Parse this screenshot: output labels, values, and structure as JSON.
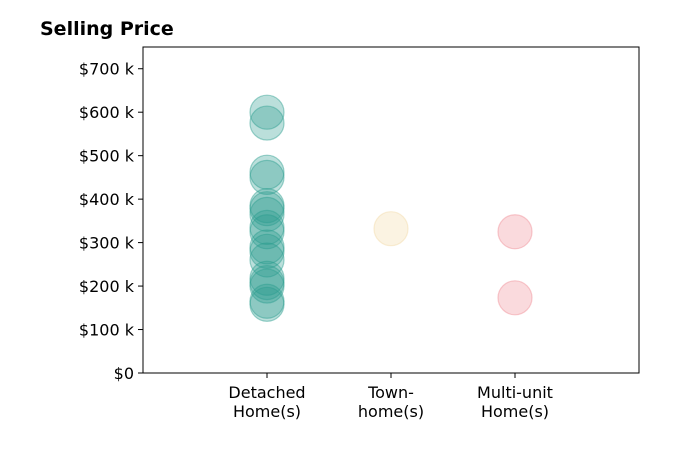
{
  "chart_data": {
    "type": "scatter",
    "title": "Selling Price",
    "xlabel": "",
    "ylabel": "",
    "categories": [
      [
        "Detached",
        "Home(s)"
      ],
      [
        "Town-",
        "home(s)"
      ],
      [
        "Multi-unit",
        "Home(s)"
      ]
    ],
    "xlim": [
      -1,
      3
    ],
    "ylim": [
      0,
      750000
    ],
    "y_ticks": [
      0,
      100000,
      200000,
      300000,
      400000,
      500000,
      600000,
      700000
    ],
    "y_tick_labels": [
      "$0",
      "$100 k",
      "$200 k",
      "$300 k",
      "$400 k",
      "$500 k",
      "$600 k",
      "$700 k"
    ],
    "grid": false,
    "series": [
      {
        "category_index": 0,
        "color": "#2a9d8f",
        "values": [
          600000,
          575000,
          462000,
          450000,
          385000,
          378000,
          365000,
          335000,
          325000,
          290000,
          280000,
          260000,
          218000,
          208000,
          200000,
          165000,
          158000
        ]
      },
      {
        "category_index": 1,
        "color": "#f2d9a6",
        "values": [
          332000
        ]
      },
      {
        "category_index": 2,
        "color": "#f08b95",
        "values": [
          325000,
          173000
        ]
      }
    ]
  }
}
